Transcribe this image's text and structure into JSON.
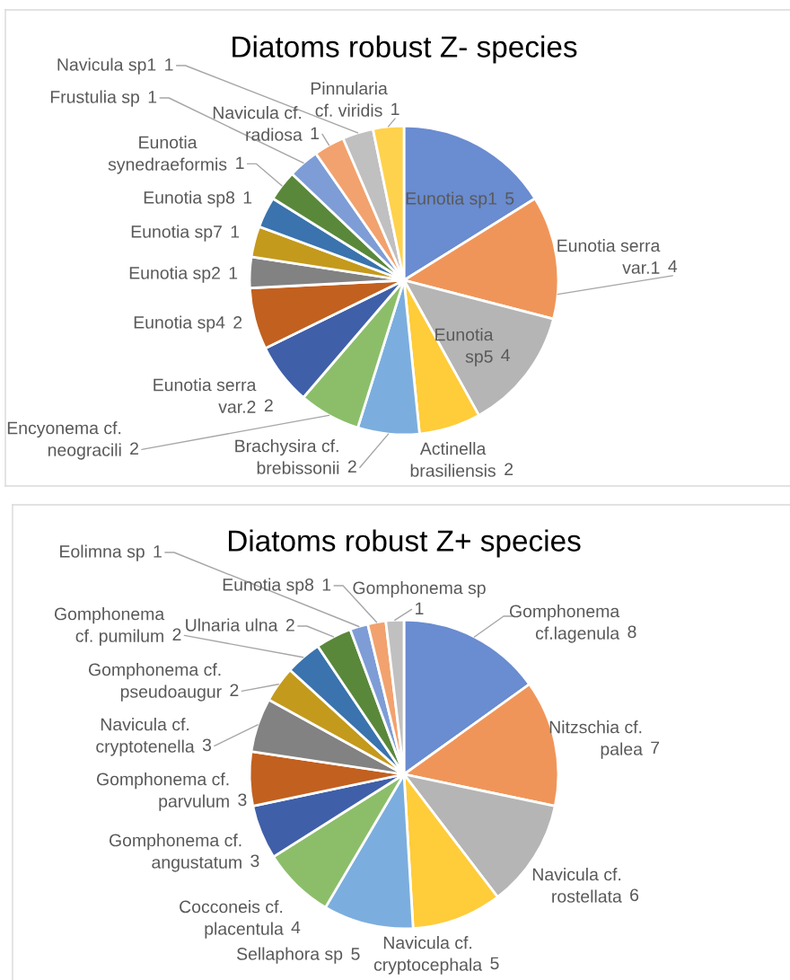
{
  "chart_data": [
    {
      "type": "pie",
      "title": "Diatoms robust Z- species",
      "categories": [
        "Eunotia sp1",
        "Eunotia serra var.1",
        "Eunotia sp5",
        "Actinella brasiliensis",
        "Brachysira cf. brebissonii",
        "Encyonema cf. neogracili",
        "Eunotia serra var.2",
        "Eunotia sp4",
        "Eunotia sp2",
        "Eunotia sp7",
        "Eunotia sp8",
        "Eunotia synedraeformis",
        "Frustulia sp",
        "Navicula cf. radiosa",
        "Navicula sp1",
        "Pinnularia cf. viridis"
      ],
      "values": [
        5,
        4,
        4,
        2,
        2,
        2,
        2,
        2,
        1,
        1,
        1,
        1,
        1,
        1,
        1,
        1
      ],
      "colors": [
        "#6a8cd0",
        "#f09559",
        "#b5b5b5",
        "#ffcc3a",
        "#7baede",
        "#8cbe6a",
        "#3f5fa8",
        "#c2601f",
        "#828282",
        "#c49a1c",
        "#3a73ae",
        "#5a883b",
        "#7e9dd6",
        "#f2a26e",
        "#c0c0c0",
        "#ffd24d"
      ],
      "data_labels": true
    },
    {
      "type": "pie",
      "title": "Diatoms robust Z+ species",
      "categories": [
        "Gomphonema cf.lagenula",
        "Nitzschia cf. palea",
        "Navicula cf. rostellata",
        "Navicula cf. cryptocephala",
        "Sellaphora sp",
        "Cocconeis cf. placentula",
        "Gomphonema cf. angustatum",
        "Gomphonema cf. parvulum",
        "Navicula cf. cryptotenella",
        "Gomphonema cf. pseudoaugur",
        "Gomphonema cf. pumilum",
        "Ulnaria ulna",
        "Eolimna sp",
        "Eunotia sp8",
        "Gomphonema sp"
      ],
      "values": [
        8,
        7,
        6,
        5,
        5,
        4,
        3,
        3,
        3,
        2,
        2,
        2,
        1,
        1,
        1
      ],
      "colors": [
        "#6a8cd0",
        "#f09559",
        "#b5b5b5",
        "#ffcc3a",
        "#7baede",
        "#8cbe6a",
        "#3f5fa8",
        "#c2601f",
        "#828282",
        "#c49a1c",
        "#3a73ae",
        "#5a883b",
        "#7e9dd6",
        "#f2a26e",
        "#c0c0c0"
      ],
      "data_labels": true
    }
  ]
}
